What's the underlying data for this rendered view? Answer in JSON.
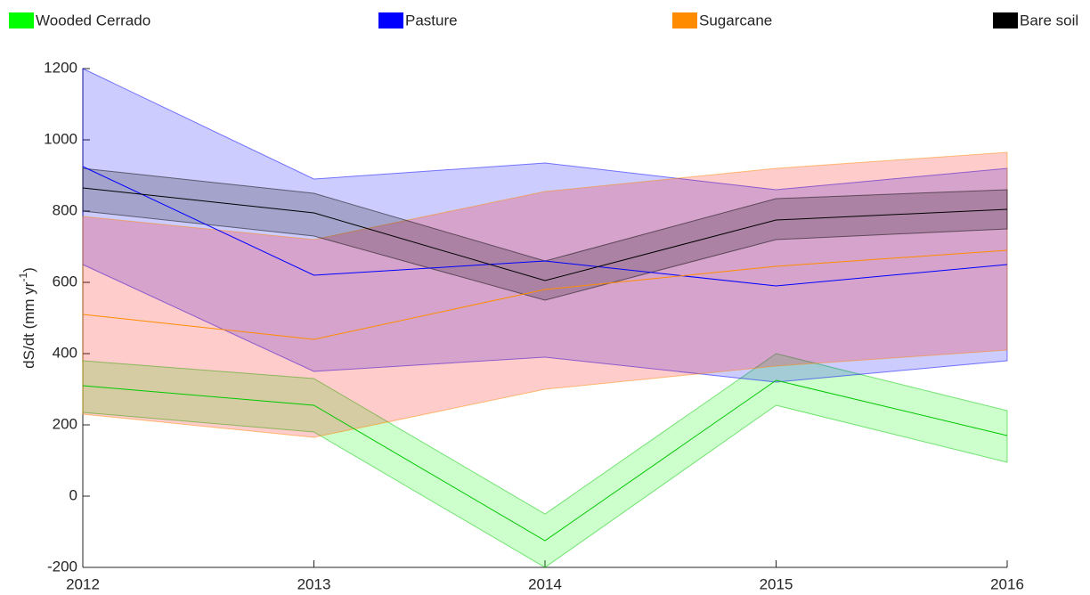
{
  "chart_data": {
    "type": "line",
    "ylabel": {
      "text": "dS/dt (mm yr",
      "superscript": "-1",
      "end": ")"
    },
    "x": [
      2012,
      2013,
      2014,
      2015,
      2016
    ],
    "xlim": [
      2012,
      2016
    ],
    "xticks": [
      2012,
      2013,
      2014,
      2015,
      2016
    ],
    "ylim": [
      -200,
      1200
    ],
    "yticks": [
      -200,
      0,
      200,
      400,
      600,
      800,
      1000,
      1200
    ],
    "legend": "top",
    "series": [
      {
        "name": "Wooded Cerrado",
        "color": "#00ff00",
        "line_color": "#00c800",
        "band_color": "#00ff00",
        "values": [
          310,
          255,
          -125,
          325,
          170
        ],
        "upper": [
          380,
          330,
          -50,
          400,
          240
        ],
        "lower": [
          235,
          180,
          -200,
          255,
          95
        ]
      },
      {
        "name": "Pasture",
        "color": "#0000ff",
        "line_color": "#0000ff",
        "band_color": "#0000ff",
        "values": [
          925,
          620,
          660,
          590,
          650
        ],
        "upper": [
          1200,
          890,
          935,
          860,
          920
        ],
        "lower": [
          650,
          350,
          390,
          320,
          380
        ]
      },
      {
        "name": "Sugarcane",
        "color": "#ff8c00",
        "line_color": "#ff8c00",
        "band_color": "#ff0000",
        "values": [
          510,
          440,
          580,
          645,
          690
        ],
        "upper": [
          785,
          720,
          855,
          920,
          965
        ],
        "lower": [
          230,
          165,
          300,
          365,
          410
        ]
      },
      {
        "name": "Bare soil",
        "color": "#000000",
        "line_color": "#000000",
        "band_color": "#000000",
        "values": [
          865,
          795,
          605,
          775,
          805
        ],
        "upper": [
          920,
          850,
          660,
          835,
          860
        ],
        "lower": [
          800,
          730,
          550,
          720,
          750
        ]
      }
    ]
  }
}
